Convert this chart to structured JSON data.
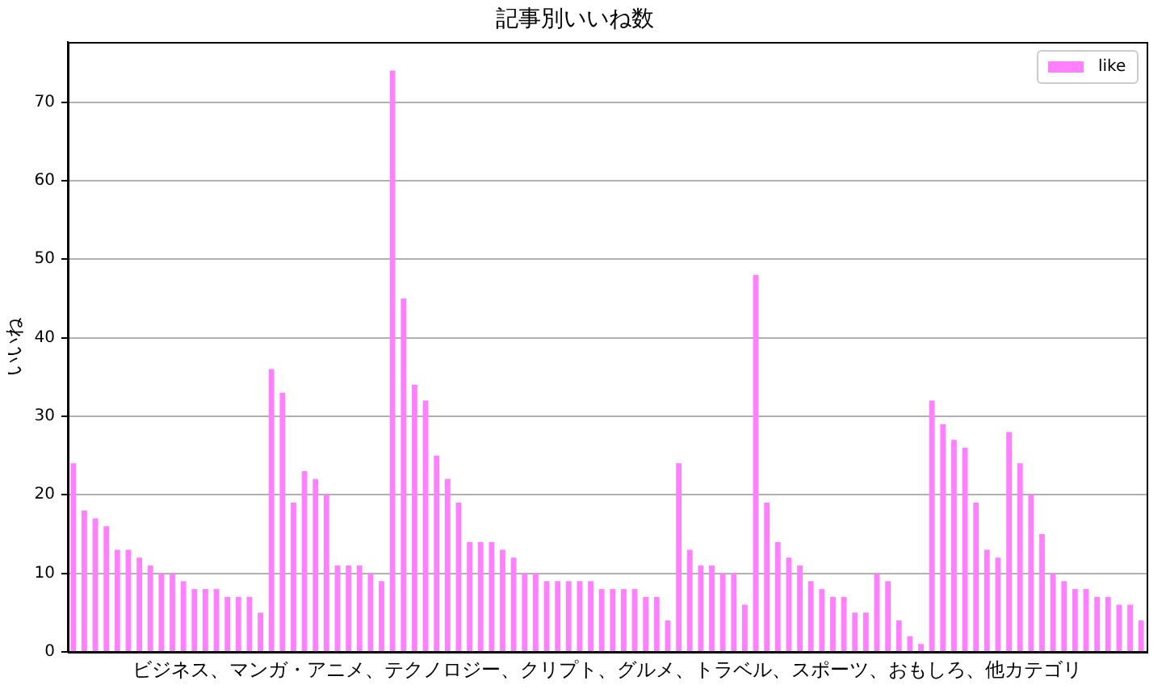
{
  "chart_data": {
    "type": "bar",
    "title": "記事別いいね数",
    "xlabel": "ビジネス、マンガ・アニメ、テクノロジー、クリプト、グルメ、トラベル、スポーツ、おもしろ、他カテゴリ",
    "ylabel": "いいね",
    "categories": [
      null,
      null,
      null,
      null,
      null,
      null,
      null,
      null,
      null,
      null,
      null,
      null,
      null,
      null,
      null,
      null,
      null,
      null,
      null,
      null,
      null,
      null,
      null,
      null,
      null,
      null,
      null,
      null,
      null,
      null,
      null,
      null,
      null,
      null,
      null,
      null,
      null,
      null,
      null,
      null,
      null,
      null,
      null,
      null,
      null,
      null,
      null,
      null,
      null,
      null,
      null,
      null,
      null,
      null,
      null,
      null,
      null,
      null,
      null,
      null,
      null,
      null,
      null,
      null,
      null,
      null,
      null,
      null,
      null,
      null,
      null,
      null,
      null,
      null,
      null,
      null,
      null,
      null,
      null,
      null,
      null,
      null,
      null,
      null,
      null,
      null,
      null,
      null,
      null,
      null,
      null,
      null,
      null,
      null,
      null,
      null,
      null,
      null
    ],
    "series": [
      {
        "name": "like",
        "color": "#ff80ff",
        "values": [
          24,
          18,
          17,
          16,
          13,
          13,
          12,
          11,
          10,
          10,
          9,
          8,
          8,
          8,
          7,
          7,
          7,
          5,
          36,
          33,
          19,
          23,
          22,
          20,
          11,
          11,
          11,
          10,
          9,
          74,
          45,
          34,
          32,
          25,
          22,
          19,
          14,
          14,
          14,
          13,
          12,
          10,
          10,
          9,
          9,
          9,
          9,
          9,
          8,
          8,
          8,
          8,
          7,
          7,
          4,
          24,
          13,
          11,
          11,
          10,
          10,
          6,
          48,
          19,
          14,
          12,
          11,
          9,
          8,
          7,
          7,
          5,
          5,
          10,
          9,
          4,
          2,
          1,
          32,
          29,
          27,
          26,
          19,
          13,
          12,
          28,
          24,
          20,
          15,
          10,
          9,
          8,
          8,
          7,
          7,
          6,
          6,
          4
        ]
      }
    ],
    "ylim": [
      0,
      77.7
    ],
    "yticks": [
      0,
      10,
      20,
      30,
      40,
      50,
      60,
      70
    ],
    "grid": "y",
    "legend": "top right",
    "tick_labels": "y"
  }
}
